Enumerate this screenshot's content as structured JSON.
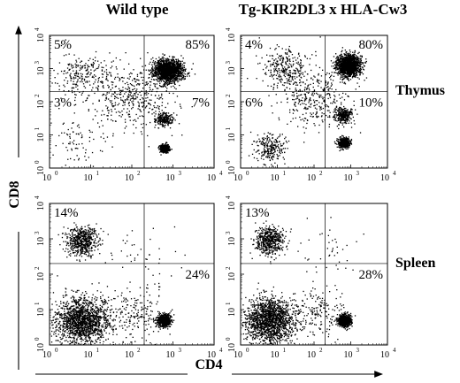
{
  "chart_data": {
    "type": "scatter",
    "column_titles": [
      "Wild type",
      "Tg-KIR2DL3 x HLA-Cw3"
    ],
    "row_labels": [
      "Thymus",
      "Spleen"
    ],
    "xlabel": "CD4",
    "ylabel": "CD8",
    "axis_scale": "log",
    "axis_range": [
      1,
      10000
    ],
    "tick_base": "10",
    "tick_exponents": [
      "0",
      "1",
      "2",
      "3",
      "4"
    ],
    "quadrant_gates": {
      "x": 200,
      "y": 200
    },
    "panels": [
      {
        "row": "Thymus",
        "column": "Wild type",
        "quadrants": {
          "upper_left": "5%",
          "upper_right": "85%",
          "lower_left": "3%",
          "lower_right": "7%"
        },
        "populations": [
          {
            "cd4": 750,
            "cd8": 900,
            "spread": 0.17,
            "count": 1700
          },
          {
            "cd4": 6,
            "cd8": 650,
            "spread": 0.34,
            "count": 240
          },
          {
            "cd4": 620,
            "cd8": 4,
            "spread": 0.06,
            "count": 360
          },
          {
            "cd4": 620,
            "cd8": 30,
            "spread": 0.1,
            "count": 220
          },
          {
            "cd4": 100,
            "cd8": 150,
            "spread": 0.5,
            "count": 420
          },
          {
            "cd4": 5,
            "cd8": 8,
            "spread": 0.4,
            "count": 90
          }
        ]
      },
      {
        "row": "Thymus",
        "column": "Tg-KIR2DL3 x HLA-Cw3",
        "quadrants": {
          "upper_left": "4%",
          "upper_right": "80%",
          "lower_left": "6%",
          "lower_right": "10%"
        },
        "populations": [
          {
            "cd4": 850,
            "cd8": 1300,
            "spread": 0.16,
            "count": 1500
          },
          {
            "cd4": 15,
            "cd8": 1100,
            "spread": 0.3,
            "count": 260
          },
          {
            "cd4": 650,
            "cd8": 6,
            "spread": 0.08,
            "count": 420
          },
          {
            "cd4": 600,
            "cd8": 40,
            "spread": 0.12,
            "count": 300
          },
          {
            "cd4": 6,
            "cd8": 4,
            "spread": 0.22,
            "count": 240
          },
          {
            "cd4": 100,
            "cd8": 150,
            "spread": 0.5,
            "count": 380
          }
        ]
      },
      {
        "row": "Spleen",
        "column": "Wild type",
        "quadrants": {
          "upper_left": "14%",
          "upper_right": "",
          "lower_left": "",
          "lower_right": "24%"
        },
        "populations": [
          {
            "cd4": 6,
            "cd8": 900,
            "spread": 0.2,
            "count": 560
          },
          {
            "cd4": 6,
            "cd8": 5,
            "spread": 0.33,
            "count": 1600
          },
          {
            "cd4": 600,
            "cd8": 5,
            "spread": 0.08,
            "count": 780
          },
          {
            "cd4": 120,
            "cd8": 8,
            "spread": 0.35,
            "count": 180
          },
          {
            "cd4": 200,
            "cd8": 400,
            "spread": 0.45,
            "count": 40
          }
        ]
      },
      {
        "row": "Spleen",
        "column": "Tg-KIR2DL3 x HLA-Cw3",
        "quadrants": {
          "upper_left": "13%",
          "upper_right": "",
          "lower_left": "",
          "lower_right": "28%"
        },
        "populations": [
          {
            "cd4": 6,
            "cd8": 900,
            "spread": 0.2,
            "count": 520
          },
          {
            "cd4": 6,
            "cd8": 5,
            "spread": 0.33,
            "count": 1600
          },
          {
            "cd4": 650,
            "cd8": 5,
            "spread": 0.08,
            "count": 860
          },
          {
            "cd4": 130,
            "cd8": 8,
            "spread": 0.35,
            "count": 180
          },
          {
            "cd4": 200,
            "cd8": 400,
            "spread": 0.45,
            "count": 40
          }
        ]
      }
    ]
  }
}
